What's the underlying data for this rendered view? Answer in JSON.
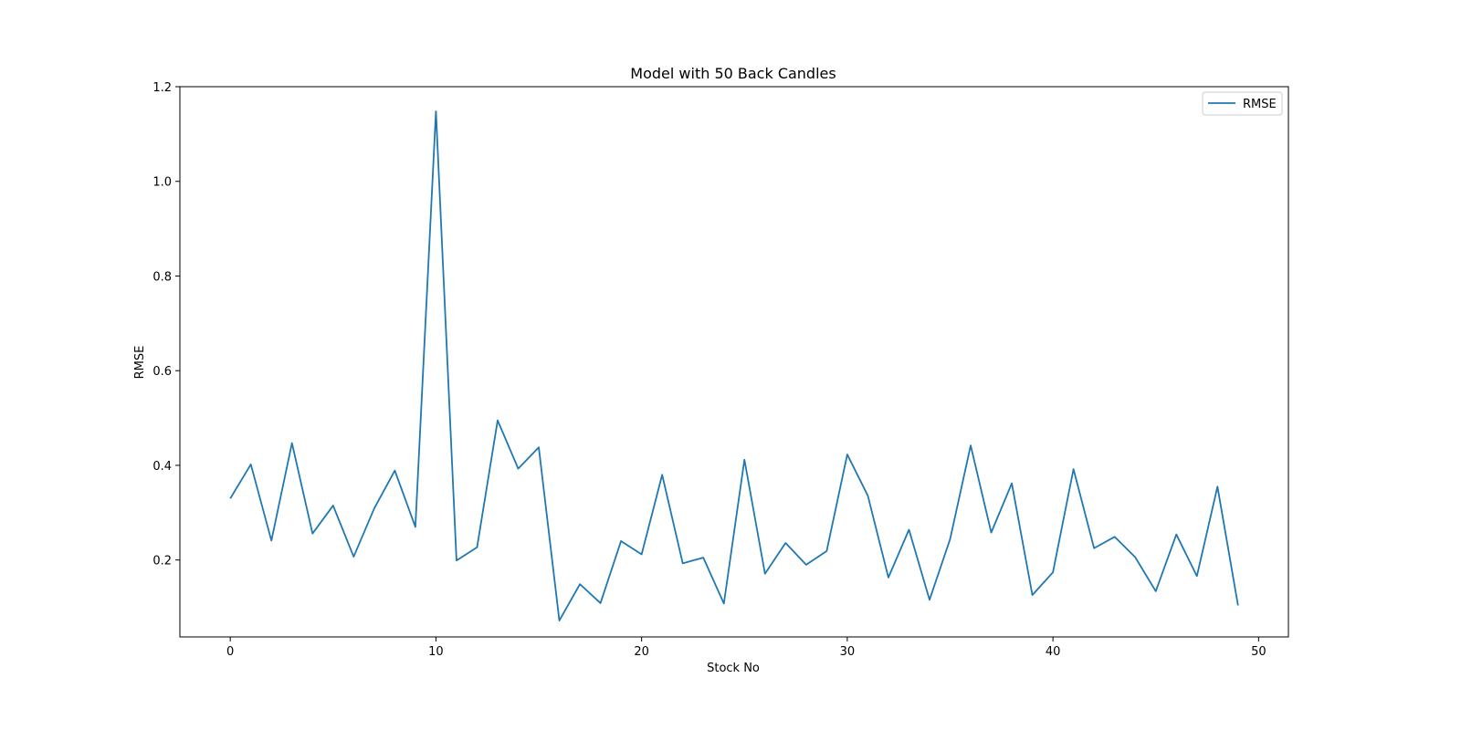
{
  "chart_data": {
    "type": "line",
    "title": "Model with 50 Back Candles",
    "xlabel": "Stock No",
    "ylabel": "RMSE",
    "xlim": [
      -2.45,
      51.45
    ],
    "ylim": [
      0.0375,
      1.2
    ],
    "xticks": [
      0,
      10,
      20,
      30,
      40,
      50
    ],
    "yticks": [
      0.2,
      0.4,
      0.6,
      0.8,
      1.0,
      1.2
    ],
    "xtick_labels": [
      "0",
      "10",
      "20",
      "30",
      "40",
      "50"
    ],
    "ytick_labels": [
      "0.2",
      "0.4",
      "0.6",
      "0.8",
      "1.0",
      "1.2"
    ],
    "grid": false,
    "legend_position": "upper right",
    "series": [
      {
        "name": "RMSE",
        "color": "#1f77b4",
        "x": [
          0,
          1,
          2,
          3,
          4,
          5,
          6,
          7,
          8,
          9,
          10,
          11,
          12,
          13,
          14,
          15,
          16,
          17,
          18,
          19,
          20,
          21,
          22,
          23,
          24,
          25,
          26,
          27,
          28,
          29,
          30,
          31,
          32,
          33,
          34,
          35,
          36,
          37,
          38,
          39,
          40,
          41,
          42,
          43,
          44,
          45,
          46,
          47,
          48,
          49
        ],
        "values": [
          0.33,
          0.402,
          0.241,
          0.447,
          0.256,
          0.315,
          0.207,
          0.309,
          0.389,
          0.27,
          1.148,
          0.199,
          0.227,
          0.495,
          0.393,
          0.438,
          0.072,
          0.149,
          0.109,
          0.24,
          0.212,
          0.38,
          0.193,
          0.205,
          0.108,
          0.412,
          0.171,
          0.236,
          0.19,
          0.219,
          0.423,
          0.336,
          0.163,
          0.264,
          0.116,
          0.244,
          0.442,
          0.258,
          0.362,
          0.126,
          0.174,
          0.392,
          0.225,
          0.249,
          0.206,
          0.134,
          0.254,
          0.166,
          0.355,
          0.104
        ]
      }
    ]
  }
}
